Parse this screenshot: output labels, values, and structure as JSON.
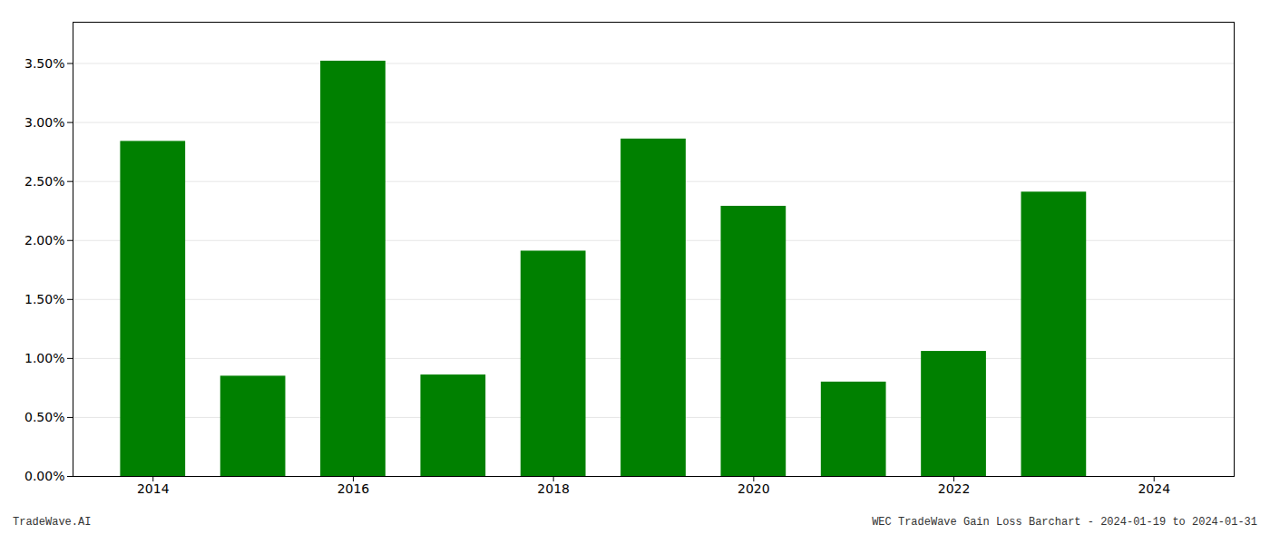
{
  "chart_data": {
    "type": "bar",
    "x": [
      2014,
      2015,
      2016,
      2017,
      2018,
      2019,
      2020,
      2021,
      2022,
      2023
    ],
    "values": [
      0.0284,
      0.0085,
      0.0352,
      0.0086,
      0.0191,
      0.0286,
      0.0229,
      0.008,
      0.0106,
      0.0241
    ],
    "color": "#008000",
    "xlim": [
      2013.2,
      2024.8
    ],
    "xticks": [
      2014,
      2016,
      2018,
      2020,
      2022,
      2024
    ],
    "ylim": [
      0,
      0.0385
    ],
    "yticks": [
      {
        "value": 0.0,
        "label": "0.00%"
      },
      {
        "value": 0.005,
        "label": "0.50%"
      },
      {
        "value": 0.01,
        "label": "1.00%"
      },
      {
        "value": 0.015,
        "label": "1.50%"
      },
      {
        "value": 0.02,
        "label": "2.00%"
      },
      {
        "value": 0.025,
        "label": "2.50%"
      },
      {
        "value": 0.03,
        "label": "3.00%"
      },
      {
        "value": 0.035,
        "label": "3.50%"
      }
    ],
    "grid": true,
    "annotations": [
      "TradeWave.AI",
      "WEC TradeWave Gain Loss Barchart - 2024-01-19 to 2024-01-31"
    ]
  }
}
